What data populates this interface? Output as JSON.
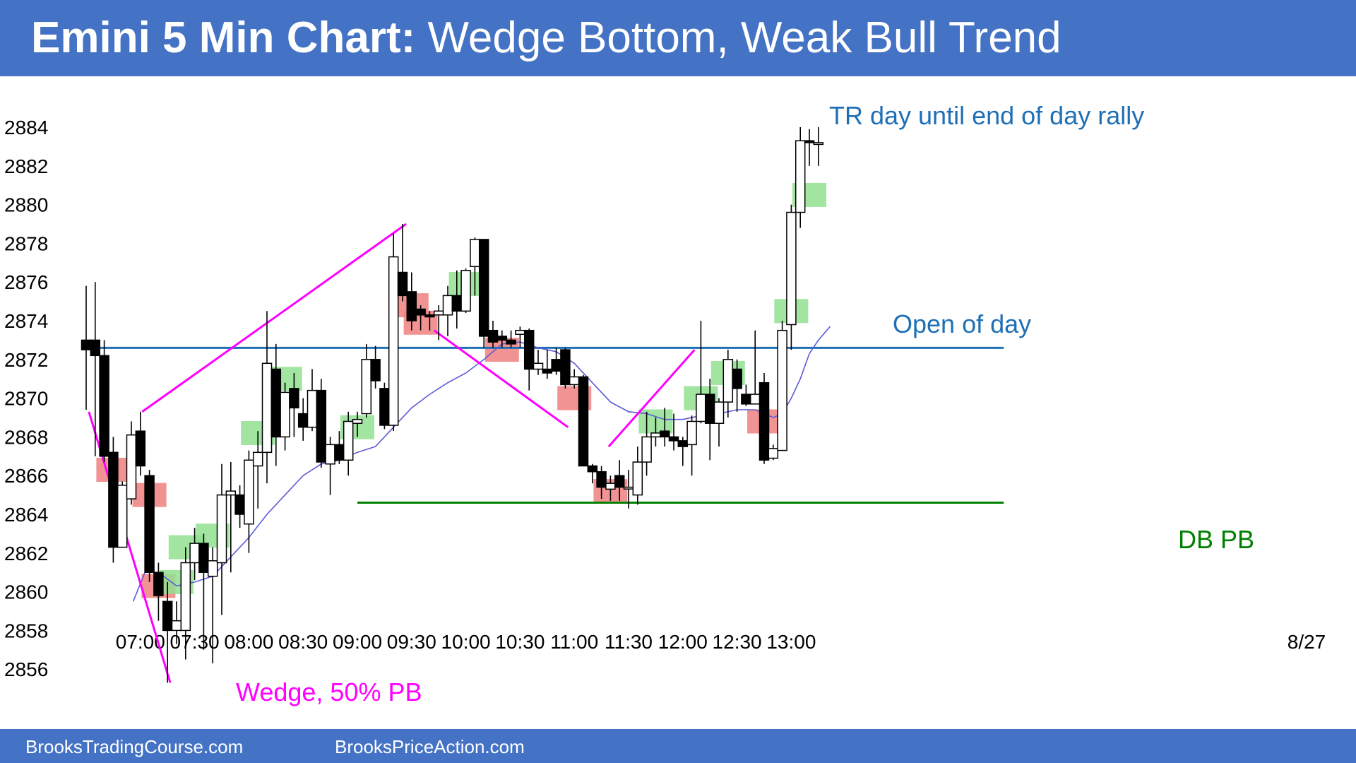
{
  "title": {
    "bold": "Emini 5 Min Chart:",
    "rest": " Wedge Bottom, Weak Bull Trend"
  },
  "footer": {
    "left": "BrooksTradingCourse.com",
    "right": "BrooksPriceAction.com"
  },
  "colors": {
    "header_bg": "#4472c4",
    "magenta": "#ff00ff",
    "open_line": "#1f6fb5",
    "green_line": "#008000",
    "ema": "#5b5bd6",
    "bull_bar_fill": "#90e090",
    "bear_bar_fill": "#f08080"
  },
  "chart_data": {
    "type": "candlestick",
    "ylim": [
      2855,
      2885
    ],
    "y_ticks": [
      2856,
      2858,
      2860,
      2862,
      2864,
      2866,
      2868,
      2870,
      2872,
      2874,
      2876,
      2878,
      2880,
      2882,
      2884
    ],
    "x_tick_labels": [
      "07:00",
      "07:30",
      "08:00",
      "08:30",
      "09:00",
      "09:30",
      "10:00",
      "10:30",
      "11:00",
      "11:30",
      "12:00",
      "12:30",
      "13:00"
    ],
    "x_tick_bars": [
      6,
      12,
      18,
      24,
      30,
      36,
      42,
      48,
      54,
      60,
      66,
      72,
      78
    ],
    "date_label": "8/27",
    "bars": [
      [
        2873.0,
        2875.8,
        2869.4,
        2872.5
      ],
      [
        2873.0,
        2876.0,
        2867.0,
        2872.2
      ],
      [
        2872.2,
        2873.0,
        2866.7,
        2867.0
      ],
      [
        2867.2,
        2868.0,
        2861.5,
        2862.3
      ],
      [
        2862.3,
        2865.7,
        2862.3,
        2865.5
      ],
      [
        2864.8,
        2868.8,
        2864.5,
        2868.1
      ],
      [
        2868.3,
        2869.3,
        2866.0,
        2866.5
      ],
      [
        2866.0,
        2866.3,
        2860.5,
        2861.0
      ],
      [
        2861.0,
        2861.5,
        2858.5,
        2859.8
      ],
      [
        2859.5,
        2860.5,
        2855.3,
        2858.0
      ],
      [
        2858.0,
        2859.5,
        2857.3,
        2858.5
      ],
      [
        2858.0,
        2862.3,
        2856.5,
        2861.5
      ],
      [
        2861.5,
        2863.3,
        2860.6,
        2862.5
      ],
      [
        2862.5,
        2863.0,
        2857.0,
        2861.0
      ],
      [
        2860.8,
        2862.3,
        2856.3,
        2861.6
      ],
      [
        2861.5,
        2866.6,
        2858.8,
        2865.0
      ],
      [
        2865.0,
        2866.7,
        2861.0,
        2865.2
      ],
      [
        2865.0,
        2865.5,
        2863.3,
        2864.0
      ],
      [
        2863.5,
        2867.3,
        2862.0,
        2866.8
      ],
      [
        2866.5,
        2868.3,
        2864.3,
        2867.2
      ],
      [
        2867.2,
        2874.5,
        2865.6,
        2871.8
      ],
      [
        2871.5,
        2872.8,
        2866.5,
        2868.0
      ],
      [
        2868.0,
        2870.8,
        2867.3,
        2870.3
      ],
      [
        2870.5,
        2871.3,
        2868.0,
        2869.5
      ],
      [
        2869.2,
        2870.0,
        2867.8,
        2868.5
      ],
      [
        2868.5,
        2871.5,
        2868.3,
        2870.4
      ],
      [
        2870.4,
        2871.0,
        2866.4,
        2866.7
      ],
      [
        2866.6,
        2868.0,
        2865.0,
        2867.6
      ],
      [
        2867.6,
        2868.3,
        2866.6,
        2866.8
      ],
      [
        2866.8,
        2869.3,
        2866.0,
        2868.8
      ],
      [
        2868.7,
        2869.3,
        2868.0,
        2868.9
      ],
      [
        2869.2,
        2872.8,
        2869.0,
        2872.0
      ],
      [
        2872.0,
        2872.7,
        2870.5,
        2870.9
      ],
      [
        2870.5,
        2870.8,
        2868.4,
        2868.6
      ],
      [
        2868.6,
        2878.5,
        2868.3,
        2877.3
      ],
      [
        2876.5,
        2879.0,
        2875.0,
        2875.3
      ],
      [
        2875.5,
        2876.5,
        2873.5,
        2874.0
      ],
      [
        2874.6,
        2874.8,
        2873.5,
        2874.3
      ],
      [
        2874.3,
        2874.5,
        2873.5,
        2874.2
      ],
      [
        2874.3,
        2874.8,
        2873.0,
        2874.5
      ],
      [
        2874.3,
        2875.8,
        2873.2,
        2875.3
      ],
      [
        2875.3,
        2876.6,
        2873.6,
        2874.5
      ],
      [
        2874.5,
        2876.7,
        2874.4,
        2876.6
      ],
      [
        2876.8,
        2878.3,
        2875.3,
        2878.2
      ],
      [
        2878.2,
        2878.2,
        2872.6,
        2873.2
      ],
      [
        2873.5,
        2874.0,
        2872.6,
        2872.9
      ],
      [
        2873.2,
        2873.5,
        2872.6,
        2873.0
      ],
      [
        2873.0,
        2873.5,
        2872.6,
        2872.8
      ],
      [
        2873.3,
        2873.7,
        2872.6,
        2873.5
      ],
      [
        2873.5,
        2873.6,
        2870.4,
        2871.5
      ],
      [
        2871.5,
        2872.5,
        2871.2,
        2871.8
      ],
      [
        2871.5,
        2872.5,
        2871.0,
        2871.3
      ],
      [
        2872.0,
        2872.6,
        2871.2,
        2871.4
      ],
      [
        2872.5,
        2872.6,
        2870.5,
        2870.7
      ],
      [
        2870.7,
        2871.5,
        2870.5,
        2871.1
      ],
      [
        2871.1,
        2871.2,
        2866.8,
        2866.5
      ],
      [
        2866.5,
        2866.6,
        2865.6,
        2866.2
      ],
      [
        2866.2,
        2866.5,
        2864.8,
        2865.4
      ],
      [
        2865.3,
        2866.0,
        2864.7,
        2865.6
      ],
      [
        2866.0,
        2866.8,
        2864.7,
        2865.4
      ],
      [
        2865.4,
        2866.3,
        2864.3,
        2865.4
      ],
      [
        2865.0,
        2867.5,
        2864.5,
        2866.7
      ],
      [
        2866.7,
        2869.3,
        2866.0,
        2868.0
      ],
      [
        2868.0,
        2869.0,
        2867.5,
        2868.2
      ],
      [
        2868.3,
        2869.5,
        2867.5,
        2868.0
      ],
      [
        2868.0,
        2869.2,
        2867.3,
        2867.8
      ],
      [
        2867.8,
        2868.0,
        2866.5,
        2867.5
      ],
      [
        2867.6,
        2869.1,
        2866.0,
        2868.8
      ],
      [
        2868.8,
        2874.0,
        2868.7,
        2870.2
      ],
      [
        2870.2,
        2871.0,
        2866.8,
        2868.7
      ],
      [
        2868.7,
        2870.0,
        2867.5,
        2869.8
      ],
      [
        2869.8,
        2872.5,
        2869.0,
        2872.0
      ],
      [
        2871.5,
        2872.0,
        2869.3,
        2870.5
      ],
      [
        2870.2,
        2870.7,
        2869.6,
        2869.7
      ],
      [
        2869.7,
        2873.5,
        2869.7,
        2870.2
      ],
      [
        2870.8,
        2871.3,
        2866.6,
        2866.8
      ],
      [
        2866.9,
        2867.6,
        2866.8,
        2867.4
      ],
      [
        2867.3,
        2874.0,
        2867.3,
        2873.5
      ],
      [
        2873.8,
        2880.0,
        2872.5,
        2879.6
      ],
      [
        2879.6,
        2884.0,
        2878.8,
        2883.3
      ],
      [
        2883.3,
        2883.9,
        2882.0,
        2883.2
      ],
      [
        2883.2,
        2884.0,
        2882.0,
        2883.2
      ]
    ],
    "ema": [
      [
        5.2,
        2859.5
      ],
      [
        6.5,
        2861.0
      ],
      [
        8.0,
        2861.0
      ],
      [
        10.0,
        2860.3
      ],
      [
        12.0,
        2860.5
      ],
      [
        14.0,
        2860.8
      ],
      [
        16.0,
        2861.8
      ],
      [
        18.0,
        2862.8
      ],
      [
        20.0,
        2864.0
      ],
      [
        22.0,
        2865.0
      ],
      [
        24.0,
        2866.0
      ],
      [
        26.0,
        2866.6
      ],
      [
        28.0,
        2866.8
      ],
      [
        30.0,
        2867.2
      ],
      [
        32.0,
        2867.5
      ],
      [
        33.0,
        2868.0
      ],
      [
        34.0,
        2868.5
      ],
      [
        36.0,
        2869.5
      ],
      [
        38.0,
        2870.2
      ],
      [
        40.0,
        2870.8
      ],
      [
        42.0,
        2871.3
      ],
      [
        44.0,
        2872.0
      ],
      [
        46.0,
        2872.8
      ],
      [
        48.0,
        2872.9
      ],
      [
        50.0,
        2872.6
      ],
      [
        52.0,
        2872.4
      ],
      [
        54.0,
        2871.8
      ],
      [
        56.0,
        2870.8
      ],
      [
        58.0,
        2869.8
      ],
      [
        60.0,
        2869.3
      ],
      [
        62.0,
        2869.2
      ],
      [
        64.0,
        2868.9
      ],
      [
        66.0,
        2868.9
      ],
      [
        68.0,
        2869.1
      ],
      [
        70.0,
        2869.2
      ],
      [
        72.0,
        2869.4
      ],
      [
        74.0,
        2869.4
      ],
      [
        76.0,
        2869.0
      ],
      [
        77.0,
        2869.2
      ],
      [
        78.0,
        2870.0
      ],
      [
        79.0,
        2871.0
      ],
      [
        80.0,
        2872.3
      ],
      [
        81.0,
        2873.0
      ],
      [
        82.3,
        2873.7
      ]
    ],
    "open_of_day": 2872.6,
    "double_bottom_level": 2864.6,
    "annotations": [
      {
        "text": "TR day until end of day rally"
      },
      {
        "text": "Open of day"
      },
      {
        "text": "DB PB"
      },
      {
        "text": "Wedge, 50% PB"
      }
    ],
    "magenta_lines": [
      [
        [
          0.3,
          2869.3
        ],
        [
          9.3,
          2855.3
        ]
      ],
      [
        [
          6.2,
          2869.3
        ],
        [
          35.4,
          2879.0
        ]
      ],
      [
        [
          38.5,
          2873.5
        ],
        [
          53.3,
          2868.5
        ]
      ],
      [
        [
          57.8,
          2867.5
        ],
        [
          67.3,
          2872.5
        ]
      ]
    ],
    "signal_boxes": [
      {
        "bar": 3,
        "price": 2866.3,
        "kind": "bear"
      },
      {
        "bar": 7,
        "price": 2865.0,
        "kind": "bear"
      },
      {
        "bar": 8,
        "price": 2860.3,
        "kind": "bear"
      },
      {
        "bar": 11,
        "price": 2862.3,
        "kind": "bull"
      },
      {
        "bar": 10,
        "price": 2860.5,
        "kind": "bull"
      },
      {
        "bar": 14,
        "price": 2862.9,
        "kind": "bull"
      },
      {
        "bar": 19,
        "price": 2868.2,
        "kind": "bull"
      },
      {
        "bar": 22,
        "price": 2871.0,
        "kind": "bull"
      },
      {
        "bar": 30,
        "price": 2868.5,
        "kind": "bull"
      },
      {
        "bar": 36,
        "price": 2874.8,
        "kind": "bear"
      },
      {
        "bar": 37,
        "price": 2873.9,
        "kind": "bear"
      },
      {
        "bar": 42,
        "price": 2875.9,
        "kind": "bull"
      },
      {
        "bar": 46,
        "price": 2872.5,
        "kind": "bear"
      },
      {
        "bar": 54,
        "price": 2870.0,
        "kind": "bear"
      },
      {
        "bar": 58,
        "price": 2865.2,
        "kind": "bear"
      },
      {
        "bar": 63,
        "price": 2868.8,
        "kind": "bull"
      },
      {
        "bar": 68,
        "price": 2870.0,
        "kind": "bull"
      },
      {
        "bar": 71,
        "price": 2871.3,
        "kind": "bull"
      },
      {
        "bar": 75,
        "price": 2868.8,
        "kind": "bear"
      },
      {
        "bar": 78,
        "price": 2874.5,
        "kind": "bull"
      },
      {
        "bar": 80,
        "price": 2880.5,
        "kind": "bull"
      }
    ]
  }
}
